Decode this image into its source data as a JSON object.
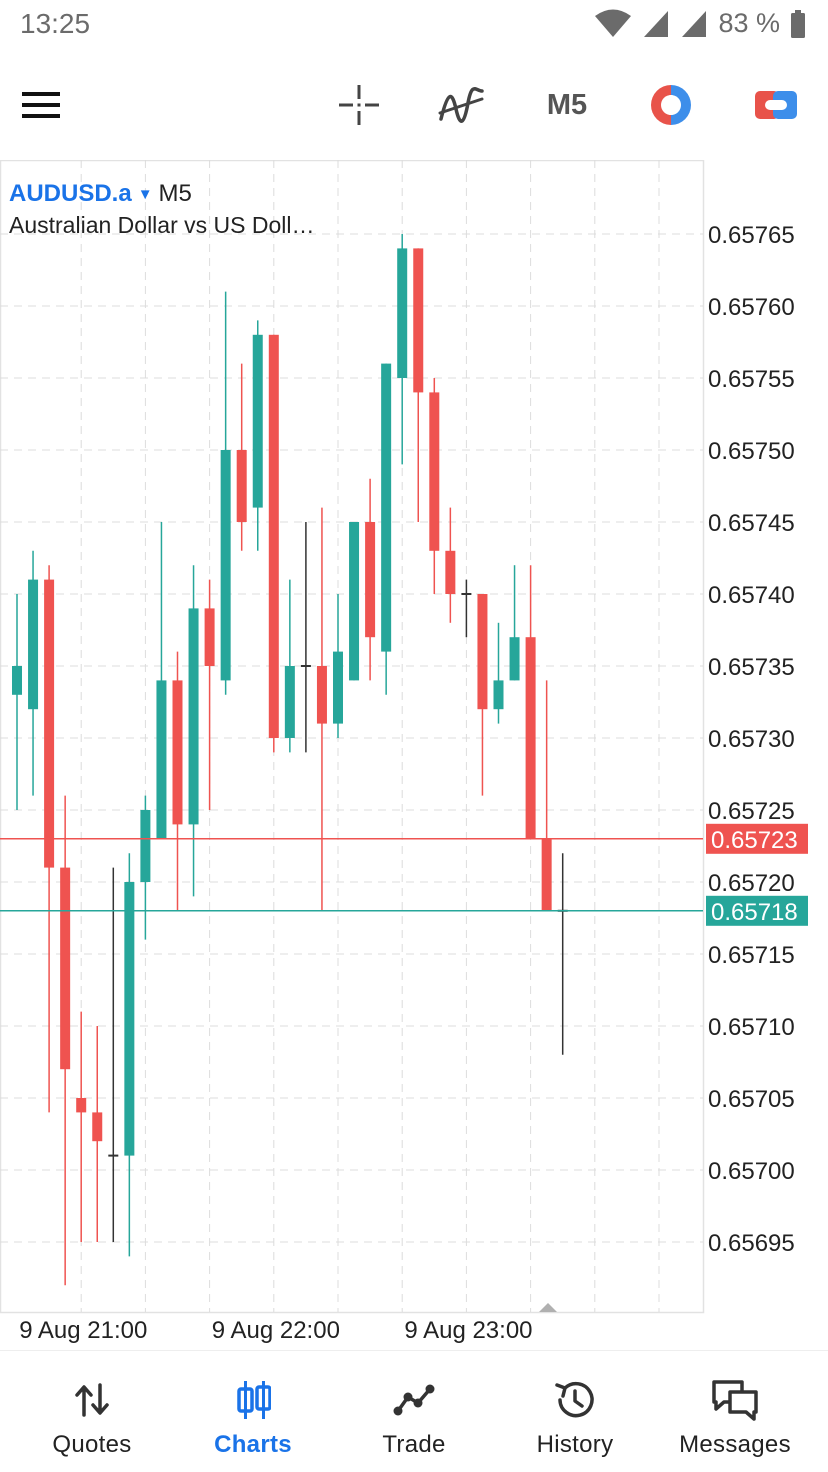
{
  "status_bar": {
    "time": "13:25",
    "battery": "83 %",
    "icons": [
      "wifi-icon",
      "signal-icon",
      "signal-icon",
      "battery-icon"
    ]
  },
  "toolbar": {
    "menu_icon": "hamburger-menu-icon",
    "crosshair_icon": "crosshair-icon",
    "indicators_icon": "indicators-icon",
    "timeframe": "M5",
    "chart_type_icon": "color-chart-icon",
    "trade_icon": "one-click-trading-icon"
  },
  "symbol": {
    "name": "AUDUSD.a",
    "caret": "▼",
    "timeframe": "M5",
    "description": "Australian Dollar vs US Doll…"
  },
  "colors": {
    "bull": "#26a69a",
    "bear": "#ef5350",
    "accent": "#1a73e8",
    "grid": "#dcdcdc"
  },
  "chart_data": {
    "type": "candlestick",
    "ylim": [
      0.65689,
      0.65771
    ],
    "y_ticks": [
      "0.65765",
      "0.65760",
      "0.65755",
      "0.65750",
      "0.65745",
      "0.65740",
      "0.65735",
      "0.65730",
      "0.65725",
      "0.65720",
      "0.65715",
      "0.65710",
      "0.65705",
      "0.65700",
      "0.65695"
    ],
    "x_labels": [
      {
        "label": "9 Aug 21:00",
        "index": 4
      },
      {
        "label": "9 Aug 22:00",
        "index": 16
      },
      {
        "label": "9 Aug 23:00",
        "index": 28
      }
    ],
    "price_lines": [
      {
        "name": "ask",
        "value": 0.65723,
        "label": "0.65723",
        "color": "#ef5350"
      },
      {
        "name": "bid",
        "value": 0.65718,
        "label": "0.65718",
        "color": "#26a69a"
      }
    ],
    "candles": [
      {
        "o": 0.65733,
        "h": 0.6574,
        "l": 0.65725,
        "c": 0.65735
      },
      {
        "o": 0.65732,
        "h": 0.65743,
        "l": 0.65726,
        "c": 0.65741
      },
      {
        "o": 0.65741,
        "h": 0.65742,
        "l": 0.65704,
        "c": 0.65721
      },
      {
        "o": 0.65721,
        "h": 0.65726,
        "l": 0.65692,
        "c": 0.65707
      },
      {
        "o": 0.65705,
        "h": 0.65711,
        "l": 0.65695,
        "c": 0.65704
      },
      {
        "o": 0.65704,
        "h": 0.6571,
        "l": 0.65695,
        "c": 0.65702
      },
      {
        "o": 0.65701,
        "h": 0.65721,
        "l": 0.65695,
        "c": 0.65701
      },
      {
        "o": 0.65701,
        "h": 0.65722,
        "l": 0.65694,
        "c": 0.6572
      },
      {
        "o": 0.6572,
        "h": 0.65726,
        "l": 0.65716,
        "c": 0.65725
      },
      {
        "o": 0.65723,
        "h": 0.65745,
        "l": 0.65723,
        "c": 0.65734
      },
      {
        "o": 0.65734,
        "h": 0.65736,
        "l": 0.65718,
        "c": 0.65724
      },
      {
        "o": 0.65724,
        "h": 0.65742,
        "l": 0.65719,
        "c": 0.65739
      },
      {
        "o": 0.65739,
        "h": 0.65741,
        "l": 0.65725,
        "c": 0.65735
      },
      {
        "o": 0.65734,
        "h": 0.65761,
        "l": 0.65733,
        "c": 0.6575
      },
      {
        "o": 0.6575,
        "h": 0.65756,
        "l": 0.65743,
        "c": 0.65745
      },
      {
        "o": 0.65746,
        "h": 0.65759,
        "l": 0.65743,
        "c": 0.65758
      },
      {
        "o": 0.65758,
        "h": 0.65758,
        "l": 0.65729,
        "c": 0.6573
      },
      {
        "o": 0.6573,
        "h": 0.65741,
        "l": 0.65729,
        "c": 0.65735
      },
      {
        "o": 0.65735,
        "h": 0.65745,
        "l": 0.65729,
        "c": 0.65735
      },
      {
        "o": 0.65735,
        "h": 0.65746,
        "l": 0.65718,
        "c": 0.65731
      },
      {
        "o": 0.65731,
        "h": 0.6574,
        "l": 0.6573,
        "c": 0.65736
      },
      {
        "o": 0.65734,
        "h": 0.65745,
        "l": 0.65734,
        "c": 0.65745
      },
      {
        "o": 0.65745,
        "h": 0.65748,
        "l": 0.65734,
        "c": 0.65737
      },
      {
        "o": 0.65736,
        "h": 0.65756,
        "l": 0.65733,
        "c": 0.65756
      },
      {
        "o": 0.65755,
        "h": 0.65765,
        "l": 0.65749,
        "c": 0.65764
      },
      {
        "o": 0.65764,
        "h": 0.65764,
        "l": 0.65745,
        "c": 0.65754
      },
      {
        "o": 0.65754,
        "h": 0.65755,
        "l": 0.6574,
        "c": 0.65743
      },
      {
        "o": 0.65743,
        "h": 0.65746,
        "l": 0.65738,
        "c": 0.6574
      },
      {
        "o": 0.6574,
        "h": 0.65741,
        "l": 0.65737,
        "c": 0.6574
      },
      {
        "o": 0.6574,
        "h": 0.6574,
        "l": 0.65726,
        "c": 0.65732
      },
      {
        "o": 0.65732,
        "h": 0.65738,
        "l": 0.65731,
        "c": 0.65734
      },
      {
        "o": 0.65734,
        "h": 0.65742,
        "l": 0.65734,
        "c": 0.65737
      },
      {
        "o": 0.65737,
        "h": 0.65742,
        "l": 0.65723,
        "c": 0.65723
      },
      {
        "o": 0.65723,
        "h": 0.65734,
        "l": 0.65718,
        "c": 0.65718
      },
      {
        "o": 0.65718,
        "h": 0.65722,
        "l": 0.65708,
        "c": 0.65718
      }
    ]
  },
  "nav": {
    "items": [
      {
        "label": "Quotes",
        "icon": "quotes-arrows-icon",
        "active": false
      },
      {
        "label": "Charts",
        "icon": "charts-candles-icon",
        "active": true
      },
      {
        "label": "Trade",
        "icon": "trade-line-icon",
        "active": false
      },
      {
        "label": "History",
        "icon": "history-clock-icon",
        "active": false
      },
      {
        "label": "Messages",
        "icon": "messages-chat-icon",
        "active": false
      }
    ]
  }
}
